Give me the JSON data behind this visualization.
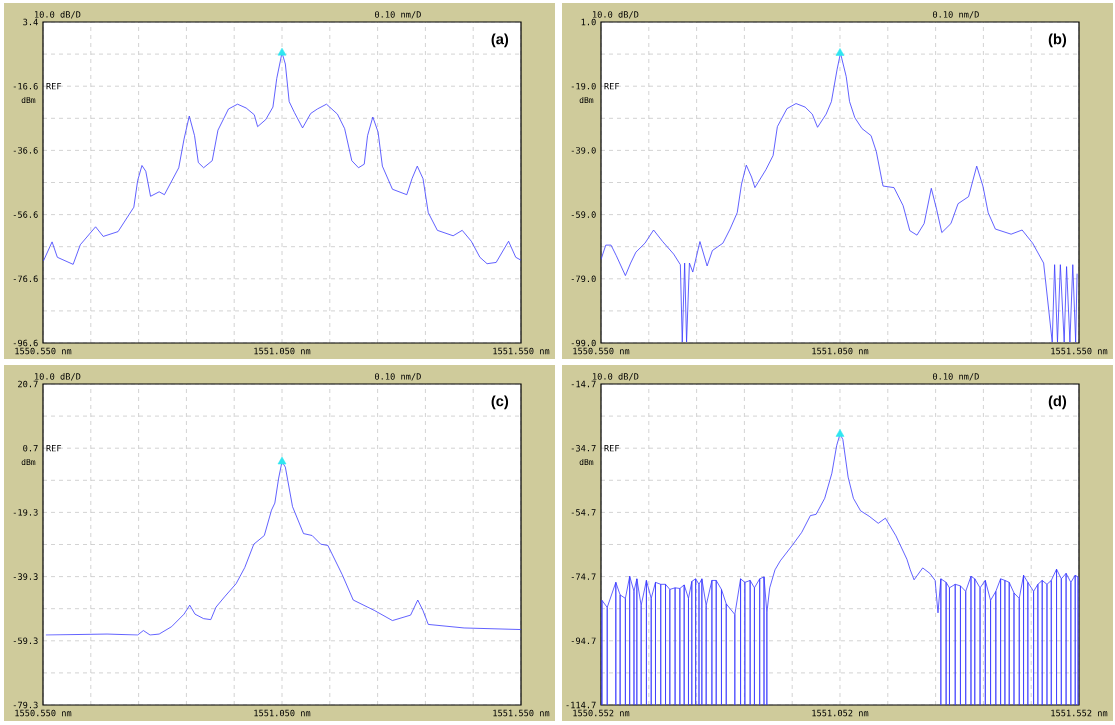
{
  "chart_data": [
    {
      "type": "line",
      "title": "(a)",
      "ylabel": "dBm",
      "xlim": [
        1550.55,
        1551.55
      ],
      "ylim": [
        -96.6,
        3.4
      ],
      "grid": true,
      "xticks": [
        {
          "value": 1550.55,
          "label": "1550.550 nm"
        },
        {
          "value": 1550.65,
          "label": null
        },
        {
          "value": 1550.75,
          "label": null
        },
        {
          "value": 1550.85,
          "label": null
        },
        {
          "value": 1550.95,
          "label": null
        },
        {
          "value": 1551.05,
          "label": "1551.050 nm"
        },
        {
          "value": 1551.15,
          "label": null
        },
        {
          "value": 1551.25,
          "label": null
        },
        {
          "value": 1551.35,
          "label": null
        },
        {
          "value": 1551.45,
          "label": null
        },
        {
          "value": 1551.55,
          "label": "1551.550 nm"
        }
      ],
      "yticks": [
        3.4,
        {
          "value": -6.6,
          "label": null
        },
        -16.6,
        {
          "value": -26.6,
          "label": null
        },
        -36.6,
        {
          "value": -46.6,
          "label": null
        },
        -56.6,
        {
          "value": -66.6,
          "label": null
        },
        -76.6,
        {
          "value": -86.6,
          "label": null
        },
        -96.6
      ],
      "annotations": [
        "10.0 dB/D",
        "0.10 nm/D",
        "REF"
      ],
      "series": [
        {
          "color": "#3a3aff",
          "x": [
            1550.551,
            1550.569,
            1550.58,
            1550.613,
            1550.628,
            1550.66,
            1550.676,
            1550.707,
            1550.74,
            1550.748,
            1550.757,
            1550.765,
            1550.775,
            1550.793,
            1550.804,
            1550.834,
            1550.845,
            1550.856,
            1550.867,
            1550.875,
            1550.886,
            1550.904,
            1550.916,
            1550.938,
            1550.957,
            1550.975,
            1550.992,
            1550.999,
            1551.016,
            1551.031,
            1551.039,
            1551.05,
            1551.057,
            1551.065,
            1551.076,
            1551.093,
            1551.11,
            1551.124,
            1551.143,
            1551.166,
            1551.181,
            1551.196,
            1551.21,
            1551.222,
            1551.229,
            1551.24,
            1551.251,
            1551.26,
            1551.281,
            1551.311,
            1551.322,
            1551.333,
            1551.345,
            1551.356,
            1551.375,
            1551.408,
            1551.427,
            1551.446,
            1551.464,
            1551.479,
            1551.498,
            1551.524,
            1551.539,
            1551.55
          ],
          "values": [
            -71.0,
            -65.1,
            -69.9,
            -72.1,
            -66.0,
            -60.4,
            -63.4,
            -61.9,
            -54.3,
            -46.0,
            -41.3,
            -43.1,
            -50.9,
            -49.5,
            -50.4,
            -42.0,
            -33.1,
            -25.9,
            -32.0,
            -40.4,
            -42.0,
            -39.8,
            -30.3,
            -23.7,
            -22.2,
            -23.4,
            -25.5,
            -29.2,
            -27.0,
            -23.1,
            -14.2,
            -6.2,
            -9.7,
            -21.4,
            -24.8,
            -29.6,
            -25.1,
            -23.7,
            -22.2,
            -25.3,
            -29.8,
            -39.8,
            -42.0,
            -40.9,
            -32.0,
            -26.2,
            -30.9,
            -41.5,
            -48.7,
            -50.4,
            -45.4,
            -41.5,
            -45.4,
            -56.0,
            -61.5,
            -63.2,
            -61.5,
            -64.9,
            -69.9,
            -71.9,
            -71.5,
            -64.9,
            -69.9,
            -70.8
          ]
        },
        {
          "type": "scatter",
          "marker": "triangle",
          "color": "#2ee6f0",
          "x": [
            1551.05
          ],
          "values": [
            -6.2
          ]
        }
      ]
    },
    {
      "type": "line",
      "title": "(b)",
      "ylabel": "dBm",
      "xlim": [
        1550.55,
        1551.55
      ],
      "ylim": [
        -99.0,
        1.0
      ],
      "grid": true,
      "xticks": [
        {
          "value": 1550.55,
          "label": "1550.550 nm"
        },
        {
          "value": 1550.65,
          "label": null
        },
        {
          "value": 1550.75,
          "label": null
        },
        {
          "value": 1550.85,
          "label": null
        },
        {
          "value": 1550.95,
          "label": null
        },
        {
          "value": 1551.05,
          "label": "1551.050 nm"
        },
        {
          "value": 1551.15,
          "label": null
        },
        {
          "value": 1551.25,
          "label": null
        },
        {
          "value": 1551.35,
          "label": null
        },
        {
          "value": 1551.45,
          "label": null
        },
        {
          "value": 1551.55,
          "label": "1551.550 nm"
        }
      ],
      "yticks": [
        {
          "value": 1.0,
          "label": "1.0"
        },
        {
          "value": -9.0,
          "label": null
        },
        {
          "value": -19.0,
          "label": "-19.0"
        },
        {
          "value": -29.0,
          "label": null
        },
        {
          "value": -39.0,
          "label": "-39.0"
        },
        {
          "value": -49.0,
          "label": null
        },
        {
          "value": -59.0,
          "label": "-59.0"
        },
        {
          "value": -69.0,
          "label": null
        },
        {
          "value": -79.0,
          "label": "-79.0"
        },
        {
          "value": -89.0,
          "label": null
        },
        {
          "value": -99.0,
          "label": "-99.0"
        }
      ],
      "annotations": [
        "10.0 dB/D",
        "0.10 nm/D",
        "REF"
      ],
      "series": [
        {
          "color": "#3a3aff",
          "x": [
            1550.55,
            1550.56,
            1550.571,
            1550.582,
            1550.601,
            1550.612,
            1550.623,
            1550.642,
            1550.66,
            1550.679,
            1550.702,
            1550.716,
            1550.72,
            1550.725,
            1550.729,
            1550.735,
            1550.742,
            1550.757,
            1550.772,
            1550.783,
            1550.805,
            1550.82,
            1550.835,
            1550.844,
            1550.854,
            1550.865,
            1550.872,
            1550.895,
            1550.91,
            1550.919,
            1550.939,
            1550.958,
            1550.977,
            1550.992,
            1551.003,
            1551.021,
            1551.032,
            1551.044,
            1551.051,
            1551.063,
            1551.07,
            1551.081,
            1551.096,
            1551.115,
            1551.126,
            1551.14,
            1551.163,
            1551.182,
            1551.196,
            1551.211,
            1551.226,
            1551.241,
            1551.252,
            1551.263,
            1551.282,
            1551.297,
            1551.319,
            1551.336,
            1551.349,
            1551.36,
            1551.375,
            1551.408,
            1551.431,
            1551.453,
            1551.476,
            1551.494,
            1551.499,
            1551.505,
            1551.511,
            1551.519,
            1551.524,
            1551.531,
            1551.537,
            1551.543,
            1551.546
          ],
          "values": [
            -73.0,
            -68.5,
            -68.5,
            -71.8,
            -78.0,
            -74.1,
            -70.7,
            -67.9,
            -63.8,
            -67.4,
            -71.3,
            -74.6,
            -98.7,
            -74.1,
            -98.7,
            -74.1,
            -76.9,
            -67.4,
            -75.0,
            -70.2,
            -67.9,
            -63.5,
            -58.4,
            -49.5,
            -43.6,
            -47.3,
            -50.6,
            -45.0,
            -40.6,
            -31.6,
            -26.0,
            -24.4,
            -25.5,
            -27.7,
            -31.8,
            -27.7,
            -23.8,
            -13.7,
            -8.7,
            -16.0,
            -23.8,
            -28.8,
            -32.2,
            -34.4,
            -39.4,
            -50.1,
            -50.6,
            -56.2,
            -64.0,
            -65.4,
            -61.8,
            -50.8,
            -57.3,
            -64.6,
            -61.8,
            -55.6,
            -53.4,
            -43.9,
            -50.1,
            -58.4,
            -63.5,
            -65.1,
            -63.8,
            -67.9,
            -74.1,
            -98.7,
            -74.6,
            -98.7,
            -74.6,
            -98.7,
            -75.2,
            -98.7,
            -74.6,
            -98.7,
            -77.4
          ]
        },
        {
          "type": "scatter",
          "marker": "triangle",
          "color": "#2ee6f0",
          "x": [
            1551.05
          ],
          "values": [
            -8.7
          ]
        }
      ]
    },
    {
      "type": "line",
      "title": "(c)",
      "ylabel": "dBm",
      "xlim": [
        1550.55,
        1551.55
      ],
      "ylim": [
        -79.3,
        20.7
      ],
      "grid": true,
      "xticks": [
        {
          "value": 1550.55,
          "label": "1550.550 nm"
        },
        {
          "value": 1550.65,
          "label": null
        },
        {
          "value": 1550.75,
          "label": null
        },
        {
          "value": 1550.85,
          "label": null
        },
        {
          "value": 1550.95,
          "label": null
        },
        {
          "value": 1551.05,
          "label": "1551.050 nm"
        },
        {
          "value": 1551.15,
          "label": null
        },
        {
          "value": 1551.25,
          "label": null
        },
        {
          "value": 1551.35,
          "label": null
        },
        {
          "value": 1551.45,
          "label": null
        },
        {
          "value": 1551.55,
          "label": "1551.550 nm"
        }
      ],
      "yticks": [
        20.7,
        {
          "value": 10.7,
          "label": null
        },
        0.7,
        {
          "value": -9.3,
          "label": null
        },
        -19.3,
        {
          "value": -29.3,
          "label": null
        },
        -39.3,
        {
          "value": -49.3,
          "label": null
        },
        -59.3,
        {
          "value": -69.3,
          "label": null
        },
        -79.3
      ],
      "annotations": [
        "10.0 dB/D",
        "0.10 nm/D",
        "REF"
      ],
      "series": [
        {
          "color": "#3a3aff",
          "x": [
            1550.556,
            1550.684,
            1550.748,
            1550.76,
            1550.774,
            1550.793,
            1550.819,
            1550.845,
            1550.857,
            1550.868,
            1550.886,
            1550.901,
            1550.912,
            1550.931,
            1550.954,
            1550.972,
            1550.991,
            1551.013,
            1551.028,
            1551.035,
            1551.043,
            1551.05,
            1551.057,
            1551.072,
            1551.095,
            1551.113,
            1551.131,
            1551.146,
            1551.176,
            1551.199,
            1551.244,
            1551.281,
            1551.319,
            1551.334,
            1551.345,
            1551.356,
            1551.431,
            1551.55
          ],
          "values": [
            -57.5,
            -57.2,
            -57.5,
            -56.1,
            -57.5,
            -57.2,
            -54.9,
            -51.0,
            -48.2,
            -51.0,
            -52.4,
            -52.7,
            -48.8,
            -45.4,
            -41.5,
            -36.5,
            -29.2,
            -26.5,
            -18.6,
            -16.4,
            -8.6,
            -3.5,
            -5.2,
            -17.5,
            -25.9,
            -26.5,
            -29.2,
            -29.6,
            -38.7,
            -46.6,
            -49.9,
            -53.0,
            -51.3,
            -46.6,
            -49.9,
            -54.2,
            -55.3,
            -55.8
          ]
        },
        {
          "type": "scatter",
          "marker": "triangle",
          "color": "#2ee6f0",
          "x": [
            1551.05
          ],
          "values": [
            -3.5
          ]
        }
      ]
    },
    {
      "type": "line",
      "title": "(d)",
      "ylabel": "dBm",
      "xlim": [
        1550.552,
        1551.552
      ],
      "ylim": [
        -114.7,
        -14.7
      ],
      "grid": true,
      "xticks": [
        {
          "value": 1550.552,
          "label": "1550.552 nm"
        },
        {
          "value": 1550.652,
          "label": null
        },
        {
          "value": 1550.752,
          "label": null
        },
        {
          "value": 1550.852,
          "label": null
        },
        {
          "value": 1550.952,
          "label": null
        },
        {
          "value": 1551.052,
          "label": "1551.052 nm"
        },
        {
          "value": 1551.152,
          "label": null
        },
        {
          "value": 1551.252,
          "label": null
        },
        {
          "value": 1551.352,
          "label": null
        },
        {
          "value": 1551.452,
          "label": null
        },
        {
          "value": 1551.552,
          "label": "1551.552 nm"
        }
      ],
      "yticks": [
        -14.7,
        {
          "value": -24.7,
          "label": null
        },
        -34.7,
        {
          "value": -44.7,
          "label": null
        },
        -54.7,
        {
          "value": -64.7,
          "label": null
        },
        -74.7,
        {
          "value": -84.7,
          "label": null
        },
        -94.7,
        {
          "value": -104.7,
          "label": null
        },
        -114.7
      ],
      "annotations": [
        "10.0 dB/D",
        "0.10 nm/D",
        "REF"
      ],
      "series": [
        {
          "color": "#3a3aff",
          "x": [
            1550.554,
            1550.554,
            1550.554,
            1550.565,
            1550.565,
            1550.565,
            1550.583,
            1550.583,
            1550.583,
            1550.592,
            1550.592,
            1550.592,
            1550.603,
            1550.603,
            1550.603,
            1550.612,
            1550.612,
            1550.612,
            1550.621,
            1550.621,
            1550.621,
            1550.627,
            1550.627,
            1550.627,
            1550.636,
            1550.636,
            1550.636,
            1550.647,
            1550.647,
            1550.647,
            1550.657,
            1550.657,
            1550.657,
            1550.666,
            1550.666,
            1550.666,
            1550.677,
            1550.677,
            1550.677,
            1550.687,
            1550.687,
            1550.687,
            1550.696,
            1550.696,
            1550.696,
            1550.707,
            1550.707,
            1550.707,
            1550.717,
            1550.717,
            1550.717,
            1550.726,
            1550.726,
            1550.726,
            1550.735,
            1550.735,
            1550.735,
            1550.742,
            1550.742,
            1550.742,
            1550.75,
            1550.75,
            1550.75,
            1550.757,
            1550.757,
            1550.757,
            1550.763,
            1550.763,
            1550.763,
            1550.772,
            1550.772,
            1550.772,
            1550.784,
            1550.784,
            1550.784,
            1550.793,
            1550.793,
            1550.793,
            1550.804,
            1550.804,
            1550.804,
            1550.814,
            1550.814,
            1550.814,
            1550.832,
            1550.832,
            1550.832,
            1550.844,
            1550.844,
            1550.844,
            1550.853,
            1550.853,
            1550.853,
            1550.864,
            1550.864,
            1550.864,
            1550.873,
            1550.873,
            1550.873,
            1550.884,
            1550.884,
            1550.884,
            1550.893,
            1550.893,
            1550.893,
            1550.899,
            1550.899,
            1550.899,
            1550.905,
            1550.916,
            1550.927,
            1550.953,
            1550.972,
            1550.99,
            1551.002,
            1551.02,
            1551.035,
            1551.045,
            1551.052,
            1551.058,
            1551.069,
            1551.08,
            1551.095,
            1551.113,
            1551.132,
            1551.147,
            1551.169,
            1551.192,
            1551.199,
            1551.207,
            1551.225,
            1551.24,
            1551.251,
            1551.257,
            1551.263,
            1551.263,
            1551.263,
            1551.274,
            1551.274,
            1551.274,
            1551.281,
            1551.281,
            1551.281,
            1551.293,
            1551.293,
            1551.293,
            1551.304,
            1551.304,
            1551.304,
            1551.315,
            1551.315,
            1551.315,
            1551.326,
            1551.326,
            1551.326,
            1551.334,
            1551.334,
            1551.334,
            1551.345,
            1551.345,
            1551.345,
            1551.356,
            1551.356,
            1551.356,
            1551.367,
            1551.367,
            1551.367,
            1551.378,
            1551.378,
            1551.378,
            1551.388,
            1551.388,
            1551.388,
            1551.397,
            1551.397,
            1551.397,
            1551.406,
            1551.406,
            1551.406,
            1551.416,
            1551.416,
            1551.416,
            1551.427,
            1551.427,
            1551.427,
            1551.436,
            1551.436,
            1551.436,
            1551.445,
            1551.445,
            1551.445,
            1551.457,
            1551.457,
            1551.457,
            1551.466,
            1551.466,
            1551.466,
            1551.475,
            1551.475,
            1551.475,
            1551.485,
            1551.485,
            1551.485,
            1551.494,
            1551.494,
            1551.494,
            1551.505,
            1551.505,
            1551.505,
            1551.515,
            1551.515,
            1551.515,
            1551.525,
            1551.525,
            1551.525,
            1551.535,
            1551.535,
            1551.535,
            1551.544,
            1551.544,
            1551.544,
            1551.55,
            1551.55,
            1551.55
          ],
          "values": [
            -82.1,
            -114.7,
            -82.1,
            -84.3,
            -114.7,
            -84.3,
            -76.5,
            -114.7,
            -76.5,
            -80.4,
            -114.7,
            -80.4,
            -81.5,
            -114.7,
            -81.5,
            -74.6,
            -114.7,
            -74.6,
            -79.3,
            -114.7,
            -79.3,
            -75.4,
            -114.7,
            -75.4,
            -83.7,
            -114.7,
            -83.7,
            -75.9,
            -114.7,
            -75.9,
            -81.5,
            -114.7,
            -81.5,
            -76.5,
            -114.7,
            -76.5,
            -77.1,
            -114.7,
            -77.1,
            -77.1,
            -114.7,
            -77.1,
            -78.7,
            -114.7,
            -78.7,
            -78.2,
            -114.7,
            -78.2,
            -78.4,
            -114.7,
            -78.4,
            -77.3,
            -114.7,
            -77.3,
            -81.5,
            -114.7,
            -81.5,
            -76.2,
            -114.7,
            -76.2,
            -75.4,
            -114.7,
            -75.4,
            -77.1,
            -114.7,
            -77.1,
            -75.4,
            -114.7,
            -75.4,
            -83.7,
            -114.7,
            -83.7,
            -75.9,
            -114.7,
            -75.9,
            -75.9,
            -114.7,
            -75.9,
            -78.7,
            -114.7,
            -78.7,
            -83.2,
            -114.7,
            -83.2,
            -86.5,
            -114.7,
            -86.5,
            -75.4,
            -114.7,
            -75.4,
            -76.5,
            -114.7,
            -76.5,
            -75.9,
            -114.7,
            -75.9,
            -78.2,
            -114.7,
            -78.2,
            -75.4,
            -114.7,
            -75.4,
            -74.8,
            -114.7,
            -74.8,
            -86.0,
            -114.7,
            -86.0,
            -78.2,
            -72.6,
            -69.8,
            -64.8,
            -60.9,
            -55.7,
            -55.3,
            -50.3,
            -42.5,
            -33.9,
            -30.3,
            -32.0,
            -43.7,
            -50.3,
            -54.2,
            -55.9,
            -58.1,
            -56.5,
            -62.0,
            -69.3,
            -72.6,
            -75.7,
            -72.0,
            -73.7,
            -75.9,
            -86.0,
            -75.4,
            -114.7,
            -75.4,
            -76.5,
            -114.7,
            -76.5,
            -78.2,
            -114.7,
            -78.2,
            -77.1,
            -114.7,
            -77.1,
            -77.6,
            -114.7,
            -77.6,
            -79.3,
            -114.7,
            -79.3,
            -74.6,
            -114.7,
            -74.6,
            -75.4,
            -114.7,
            -75.4,
            -78.2,
            -114.7,
            -78.2,
            -75.9,
            -114.7,
            -75.9,
            -82.1,
            -114.7,
            -82.1,
            -79.3,
            -114.7,
            -79.3,
            -75.4,
            -114.7,
            -75.4,
            -75.9,
            -114.7,
            -75.9,
            -76.5,
            -114.7,
            -76.5,
            -79.8,
            -114.7,
            -79.8,
            -81.5,
            -114.7,
            -81.5,
            -74.3,
            -114.7,
            -74.3,
            -76.5,
            -114.7,
            -76.5,
            -79.3,
            -114.7,
            -79.3,
            -77.1,
            -114.7,
            -77.1,
            -75.9,
            -114.7,
            -75.9,
            -77.1,
            -114.7,
            -77.1,
            -75.9,
            -114.7,
            -75.9,
            -72.4,
            -114.7,
            -72.4,
            -75.4,
            -114.7,
            -75.4,
            -73.7,
            -114.7,
            -73.7,
            -76.5,
            -114.7,
            -76.5,
            -74.3,
            -114.7,
            -74.3,
            -74.8,
            -114.7,
            -74.8
          ]
        },
        {
          "type": "scatter",
          "marker": "triangle",
          "color": "#2ee6f0",
          "x": [
            1551.052
          ],
          "values": [
            -30.3
          ]
        }
      ]
    }
  ]
}
